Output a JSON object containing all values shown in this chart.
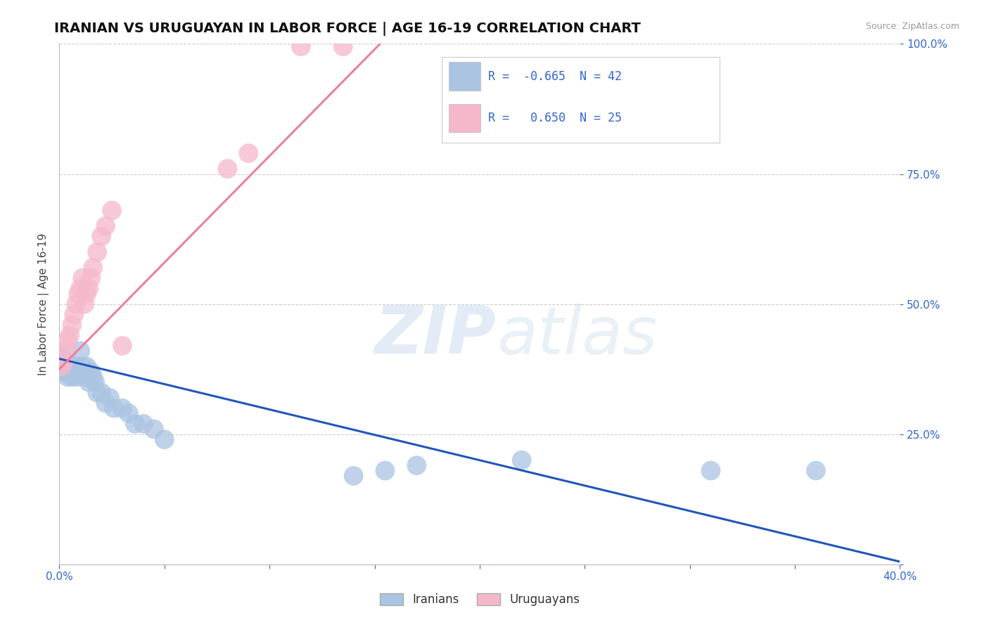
{
  "title": "IRANIAN VS URUGUAYAN IN LABOR FORCE | AGE 16-19 CORRELATION CHART",
  "source_text": "Source: ZipAtlas.com",
  "ylabel": "In Labor Force | Age 16-19",
  "watermark_zip": "ZIP",
  "watermark_atlas": "atlas",
  "xlim": [
    0.0,
    0.4
  ],
  "ylim": [
    0.0,
    1.0
  ],
  "iranian_color": "#aac4e2",
  "uruguayan_color": "#f5b8cb",
  "iranian_line_color": "#2255bb",
  "uruguayan_line_color": "#e8829a",
  "grid_color": "#cccccc",
  "legend_color": "#3366cc",
  "iranian_R": -0.665,
  "iranian_N": 42,
  "uruguayan_R": 0.65,
  "uruguayan_N": 25,
  "iranian_line": [
    0.0,
    0.4,
    0.395,
    0.005
  ],
  "uruguayan_line": [
    0.0,
    0.155,
    0.375,
    1.01
  ],
  "iranian_x": [
    0.001,
    0.002,
    0.002,
    0.003,
    0.003,
    0.004,
    0.004,
    0.005,
    0.005,
    0.006,
    0.006,
    0.007,
    0.007,
    0.008,
    0.008,
    0.009,
    0.01,
    0.01,
    0.011,
    0.012,
    0.013,
    0.014,
    0.015,
    0.016,
    0.017,
    0.018,
    0.02,
    0.022,
    0.024,
    0.026,
    0.03,
    0.033,
    0.036,
    0.04,
    0.045,
    0.05,
    0.14,
    0.155,
    0.17,
    0.22,
    0.31,
    0.36
  ],
  "iranian_y": [
    0.4,
    0.38,
    0.37,
    0.38,
    0.39,
    0.37,
    0.36,
    0.38,
    0.37,
    0.38,
    0.36,
    0.37,
    0.38,
    0.36,
    0.38,
    0.37,
    0.41,
    0.37,
    0.38,
    0.36,
    0.38,
    0.35,
    0.37,
    0.36,
    0.35,
    0.33,
    0.33,
    0.31,
    0.32,
    0.3,
    0.3,
    0.29,
    0.27,
    0.27,
    0.26,
    0.24,
    0.17,
    0.18,
    0.19,
    0.2,
    0.18,
    0.18
  ],
  "uruguayan_x": [
    0.001,
    0.002,
    0.003,
    0.004,
    0.005,
    0.006,
    0.007,
    0.008,
    0.009,
    0.01,
    0.011,
    0.012,
    0.013,
    0.014,
    0.015,
    0.016,
    0.018,
    0.02,
    0.022,
    0.025,
    0.03,
    0.08,
    0.09,
    0.115,
    0.135
  ],
  "uruguayan_y": [
    0.38,
    0.39,
    0.41,
    0.43,
    0.44,
    0.46,
    0.48,
    0.5,
    0.52,
    0.53,
    0.55,
    0.5,
    0.52,
    0.53,
    0.55,
    0.57,
    0.6,
    0.63,
    0.65,
    0.68,
    0.42,
    0.76,
    0.79,
    0.995,
    0.995
  ],
  "bg_color": "#ffffff",
  "title_fontsize": 14,
  "tick_color": "#3366cc",
  "tick_fontsize": 11,
  "source_fontsize": 9,
  "ylabel_fontsize": 11
}
